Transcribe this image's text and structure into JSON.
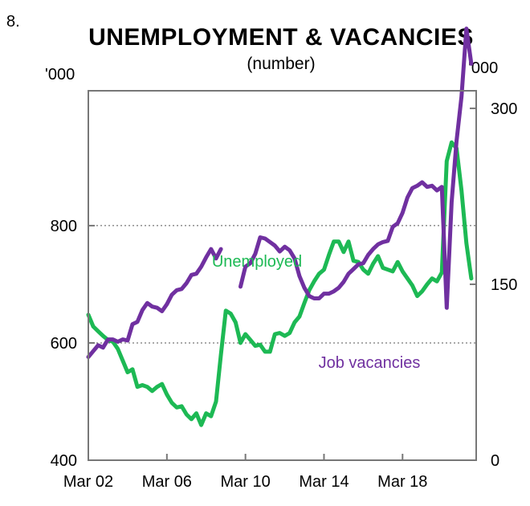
{
  "figure_number": "8.",
  "chart_data": {
    "type": "line",
    "title": "UNEMPLOYMENT & VACANCIES",
    "subtitle": "(number)",
    "unit_left": "'000",
    "unit_right": "'000",
    "x_ticks": [
      {
        "label": "Mar 02",
        "x": 2002.25
      },
      {
        "label": "Mar 06",
        "x": 2006.25
      },
      {
        "label": "Mar 10",
        "x": 2010.25
      },
      {
        "label": "Mar 14",
        "x": 2014.25
      },
      {
        "label": "Mar 18",
        "x": 2018.25
      }
    ],
    "xlim": [
      2002.25,
      2022.0
    ],
    "y_left": {
      "ticks": [
        400,
        600,
        800
      ],
      "ylim": [
        400,
        1030
      ]
    },
    "y_right": {
      "ticks": [
        0,
        150,
        300
      ],
      "ylim": [
        0,
        315
      ]
    },
    "gridlines_at_left_values": [
      600,
      800
    ],
    "series": [
      {
        "name": "Unemployed",
        "axis": "left",
        "color": "#1db954",
        "label_position": "middle",
        "points": [
          [
            2002.25,
            648
          ],
          [
            2002.5,
            628
          ],
          [
            2002.75,
            620
          ],
          [
            2003.0,
            612
          ],
          [
            2003.25,
            605
          ],
          [
            2003.5,
            602
          ],
          [
            2003.75,
            590
          ],
          [
            2004.0,
            570
          ],
          [
            2004.25,
            550
          ],
          [
            2004.5,
            555
          ],
          [
            2004.75,
            525
          ],
          [
            2005.0,
            528
          ],
          [
            2005.25,
            525
          ],
          [
            2005.5,
            518
          ],
          [
            2005.75,
            525
          ],
          [
            2006.0,
            530
          ],
          [
            2006.25,
            512
          ],
          [
            2006.5,
            498
          ],
          [
            2006.75,
            490
          ],
          [
            2007.0,
            492
          ],
          [
            2007.25,
            478
          ],
          [
            2007.5,
            470
          ],
          [
            2007.75,
            480
          ],
          [
            2008.0,
            460
          ],
          [
            2008.25,
            480
          ],
          [
            2008.5,
            475
          ],
          [
            2008.75,
            500
          ],
          [
            2009.0,
            580
          ],
          [
            2009.25,
            655
          ],
          [
            2009.5,
            650
          ],
          [
            2009.75,
            635
          ],
          [
            2010.0,
            600
          ],
          [
            2010.25,
            615
          ],
          [
            2010.5,
            605
          ],
          [
            2010.75,
            595
          ],
          [
            2011.0,
            597
          ],
          [
            2011.25,
            585
          ],
          [
            2011.5,
            585
          ],
          [
            2011.75,
            615
          ],
          [
            2012.0,
            617
          ],
          [
            2012.25,
            612
          ],
          [
            2012.5,
            617
          ],
          [
            2012.75,
            635
          ],
          [
            2013.0,
            645
          ],
          [
            2013.25,
            668
          ],
          [
            2013.5,
            690
          ],
          [
            2013.75,
            705
          ],
          [
            2014.0,
            718
          ],
          [
            2014.25,
            725
          ],
          [
            2014.5,
            750
          ],
          [
            2014.75,
            773
          ],
          [
            2015.0,
            773
          ],
          [
            2015.25,
            755
          ],
          [
            2015.5,
            773
          ],
          [
            2015.75,
            740
          ],
          [
            2016.0,
            738
          ],
          [
            2016.25,
            725
          ],
          [
            2016.5,
            718
          ],
          [
            2016.75,
            735
          ],
          [
            2017.0,
            748
          ],
          [
            2017.25,
            728
          ],
          [
            2017.5,
            725
          ],
          [
            2017.75,
            722
          ],
          [
            2018.0,
            738
          ],
          [
            2018.25,
            722
          ],
          [
            2018.5,
            710
          ],
          [
            2018.75,
            698
          ],
          [
            2019.0,
            680
          ],
          [
            2019.25,
            688
          ],
          [
            2019.5,
            700
          ],
          [
            2019.75,
            710
          ],
          [
            2020.0,
            705
          ],
          [
            2020.25,
            720
          ],
          [
            2020.5,
            910
          ],
          [
            2020.75,
            942
          ],
          [
            2021.0,
            932
          ],
          [
            2021.25,
            860
          ],
          [
            2021.5,
            770
          ],
          [
            2021.75,
            710
          ]
        ]
      },
      {
        "name": "Job vacancies",
        "axis": "right",
        "color": "#7030a0",
        "label_position": "lower-middle",
        "segments": [
          [
            [
              2002.25,
              88
            ],
            [
              2002.5,
              93
            ],
            [
              2002.75,
              98
            ],
            [
              2003.0,
              96
            ],
            [
              2003.25,
              103
            ],
            [
              2003.5,
              103
            ],
            [
              2003.75,
              101
            ],
            [
              2004.0,
              103
            ],
            [
              2004.25,
              102
            ],
            [
              2004.5,
              116
            ],
            [
              2004.75,
              118
            ],
            [
              2005.0,
              128
            ],
            [
              2005.25,
              134
            ],
            [
              2005.5,
              131
            ],
            [
              2005.75,
              130
            ],
            [
              2006.0,
              127
            ],
            [
              2006.25,
              133
            ],
            [
              2006.5,
              141
            ],
            [
              2006.75,
              145
            ],
            [
              2007.0,
              146
            ],
            [
              2007.25,
              151
            ],
            [
              2007.5,
              158
            ],
            [
              2007.75,
              159
            ],
            [
              2008.0,
              165
            ],
            [
              2008.25,
              173
            ],
            [
              2008.5,
              180
            ],
            [
              2008.75,
              172
            ],
            [
              2009.0,
              180
            ]
          ],
          [
            [
              2010.0,
              148
            ],
            [
              2010.25,
              165
            ],
            [
              2010.5,
              168
            ],
            [
              2010.75,
              176
            ],
            [
              2011.0,
              190
            ],
            [
              2011.25,
              189
            ],
            [
              2011.5,
              186
            ],
            [
              2011.75,
              183
            ],
            [
              2012.0,
              178
            ],
            [
              2012.25,
              182
            ],
            [
              2012.5,
              179
            ],
            [
              2012.75,
              172
            ],
            [
              2013.0,
              157
            ],
            [
              2013.25,
              147
            ],
            [
              2013.5,
              140
            ],
            [
              2013.75,
              138
            ],
            [
              2014.0,
              138
            ],
            [
              2014.25,
              142
            ],
            [
              2014.5,
              142
            ],
            [
              2014.75,
              144
            ],
            [
              2015.0,
              147
            ],
            [
              2015.25,
              152
            ],
            [
              2015.5,
              159
            ],
            [
              2015.75,
              163
            ],
            [
              2016.0,
              167
            ],
            [
              2016.25,
              168
            ],
            [
              2016.5,
              175
            ],
            [
              2016.75,
              180
            ],
            [
              2017.0,
              184
            ],
            [
              2017.25,
              186
            ],
            [
              2017.5,
              187
            ],
            [
              2017.75,
              199
            ],
            [
              2018.0,
              202
            ],
            [
              2018.25,
              211
            ],
            [
              2018.5,
              224
            ],
            [
              2018.75,
              232
            ],
            [
              2019.0,
              234
            ],
            [
              2019.25,
              237
            ],
            [
              2019.5,
              233
            ],
            [
              2019.75,
              234
            ],
            [
              2020.0,
              230
            ],
            [
              2020.25,
              233
            ],
            [
              2020.5,
              130
            ],
            [
              2020.75,
              220
            ],
            [
              2021.0,
              272
            ],
            [
              2021.25,
              310
            ],
            [
              2021.5,
              368
            ],
            [
              2021.75,
              338
            ]
          ]
        ]
      }
    ]
  }
}
